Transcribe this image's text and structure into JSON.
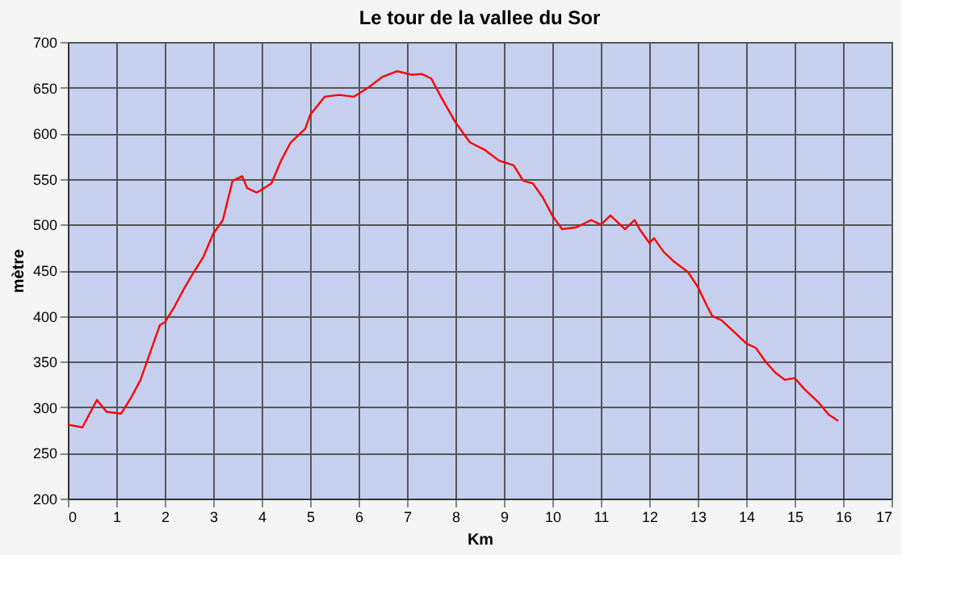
{
  "chart_data": {
    "type": "line",
    "title": "Le tour de la vallee du Sor",
    "xlabel": "Km",
    "ylabel": "mètre",
    "x": [
      0,
      0.3,
      0.6,
      0.8,
      1.1,
      1.3,
      1.5,
      1.7,
      1.9,
      2.0,
      2.2,
      2.4,
      2.6,
      2.8,
      3.0,
      3.2,
      3.4,
      3.6,
      3.7,
      3.9,
      4.2,
      4.4,
      4.6,
      4.9,
      5.0,
      5.3,
      5.6,
      5.9,
      6.2,
      6.5,
      6.8,
      7.1,
      7.3,
      7.5,
      7.7,
      8.0,
      8.3,
      8.6,
      8.9,
      9.2,
      9.4,
      9.6,
      9.8,
      10.0,
      10.2,
      10.5,
      10.8,
      11.0,
      11.2,
      11.5,
      11.7,
      11.8,
      12.0,
      12.1,
      12.3,
      12.5,
      12.8,
      13.0,
      13.2,
      13.3,
      13.5,
      13.8,
      14.0,
      14.2,
      14.4,
      14.6,
      14.8,
      15.0,
      15.2,
      15.5,
      15.7,
      15.9
    ],
    "series": [
      {
        "color": "#ff0000",
        "values": [
          281,
          278,
          308,
          295,
          293,
          310,
          330,
          360,
          390,
          393,
          410,
          430,
          448,
          465,
          490,
          505,
          548,
          553,
          540,
          535,
          545,
          570,
          590,
          605,
          620,
          640,
          642,
          640,
          650,
          662,
          668,
          664,
          665,
          660,
          640,
          612,
          590,
          582,
          570,
          565,
          548,
          545,
          530,
          510,
          495,
          497,
          505,
          500,
          510,
          495,
          505,
          495,
          480,
          485,
          470,
          460,
          448,
          432,
          410,
          400,
          395,
          380,
          370,
          365,
          350,
          338,
          330,
          332,
          320,
          305,
          292,
          285
        ]
      }
    ],
    "xlim": [
      0,
      17
    ],
    "xticks": [
      0,
      1,
      2,
      3,
      4,
      5,
      6,
      7,
      8,
      9,
      10,
      11,
      12,
      13,
      14,
      15,
      16,
      17
    ],
    "ylim": [
      200,
      700
    ],
    "yticks": [
      200,
      250,
      300,
      350,
      400,
      450,
      500,
      550,
      600,
      650,
      700
    ],
    "grid": true,
    "marker": "none",
    "line_style": "solid"
  }
}
